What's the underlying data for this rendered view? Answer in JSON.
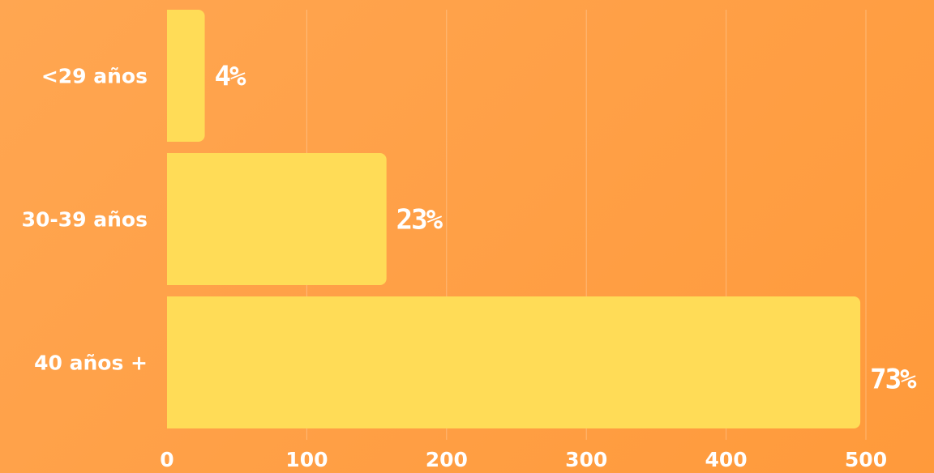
{
  "chart_data": {
    "type": "bar",
    "orientation": "horizontal",
    "categories": [
      "<29 años",
      "30-39 años",
      "40 años +"
    ],
    "values": [
      27,
      157,
      496
    ],
    "data_labels": [
      "4%",
      "23%",
      "73%"
    ],
    "x_ticks": [
      "0",
      "100",
      "200",
      "300",
      "400",
      "500"
    ],
    "xlim": [
      0,
      500
    ],
    "grid": true,
    "legend": "none",
    "colors": {
      "bar": "#ffdc57",
      "background": "#ffa04a",
      "text": "#ffffff"
    }
  }
}
